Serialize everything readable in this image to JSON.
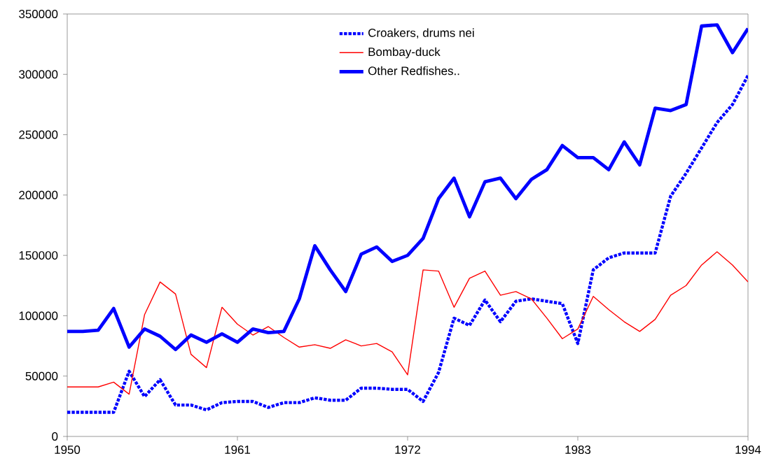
{
  "chart_data": {
    "type": "line",
    "x": [
      1950,
      1951,
      1952,
      1953,
      1954,
      1955,
      1956,
      1957,
      1958,
      1959,
      1960,
      1961,
      1962,
      1963,
      1964,
      1965,
      1966,
      1967,
      1968,
      1969,
      1970,
      1971,
      1972,
      1973,
      1974,
      1975,
      1976,
      1977,
      1978,
      1979,
      1980,
      1981,
      1982,
      1983,
      1984,
      1985,
      1986,
      1987,
      1988,
      1989,
      1990,
      1991,
      1992,
      1993,
      1994
    ],
    "series": [
      {
        "name": "Croakers, drums nei",
        "color": "#0000ff",
        "line_style": "dotted",
        "values": [
          20000,
          20000,
          20000,
          20000,
          54000,
          33000,
          47000,
          26000,
          26000,
          22000,
          28000,
          29000,
          29000,
          24000,
          28000,
          28000,
          32000,
          30000,
          30000,
          40000,
          40000,
          39000,
          39000,
          29000,
          53000,
          98000,
          92000,
          113000,
          95000,
          112000,
          114000,
          112000,
          110000,
          77000,
          138000,
          148000,
          152000,
          152000,
          152000,
          199000,
          218000,
          239000,
          260000,
          275000,
          299000
        ]
      },
      {
        "name": "Bombay-duck",
        "color": "#ff0000",
        "line_style": "solid",
        "values": [
          41000,
          41000,
          41000,
          45000,
          35000,
          101000,
          128000,
          118000,
          68000,
          57000,
          107000,
          93000,
          84000,
          91000,
          82000,
          74000,
          76000,
          73000,
          80000,
          75000,
          77000,
          70000,
          51000,
          138000,
          137000,
          107000,
          131000,
          137000,
          117000,
          120000,
          114000,
          98000,
          81000,
          89000,
          116000,
          105000,
          95000,
          87000,
          97000,
          117000,
          125000,
          142000,
          153000,
          142000,
          128000
        ]
      },
      {
        "name": "Other Redfishes..",
        "color": "#0000ff",
        "line_style": "solid",
        "values": [
          87000,
          87000,
          88000,
          106000,
          74000,
          89000,
          83000,
          72000,
          84000,
          78000,
          85000,
          78000,
          89000,
          86000,
          87000,
          114000,
          158000,
          138000,
          120000,
          151000,
          157000,
          145000,
          150000,
          164000,
          197000,
          214000,
          182000,
          211000,
          214000,
          197000,
          213000,
          221000,
          241000,
          231000,
          231000,
          221000,
          244000,
          225000,
          272000,
          270000,
          275000,
          340000,
          341000,
          318000,
          338000
        ]
      }
    ],
    "xlim": [
      1950,
      1994
    ],
    "xticks": [
      1950,
      1961,
      1972,
      1983,
      1994
    ],
    "ylim": [
      0,
      350000
    ],
    "yticks": [
      0,
      50000,
      100000,
      150000,
      200000,
      250000,
      300000,
      350000
    ],
    "grid": false,
    "legend": "top",
    "marker": "none"
  }
}
